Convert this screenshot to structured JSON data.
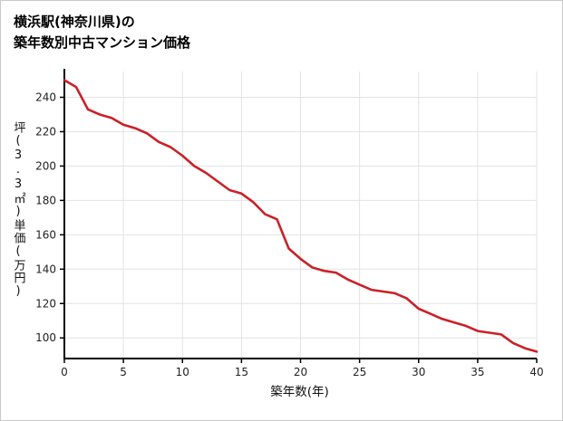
{
  "chart_data": {
    "type": "line",
    "title_lines": [
      "横浜駅(神奈川県)の",
      "築年数別中古マンション価格"
    ],
    "xlabel": "築年数(年)",
    "ylabel": "坪(3.3㎡)単価(万円)",
    "x": [
      0,
      1,
      2,
      3,
      4,
      5,
      6,
      7,
      8,
      9,
      10,
      11,
      12,
      13,
      14,
      15,
      16,
      17,
      18,
      19,
      20,
      21,
      22,
      23,
      24,
      25,
      26,
      27,
      28,
      29,
      30,
      31,
      32,
      33,
      34,
      35,
      36,
      37,
      38,
      39,
      40
    ],
    "y": [
      250,
      246,
      233,
      230,
      228,
      224,
      222,
      219,
      214,
      211,
      206,
      200,
      196,
      191,
      186,
      184,
      179,
      172,
      169,
      152,
      146,
      141,
      139,
      138,
      134,
      131,
      128,
      127,
      126,
      123,
      117,
      114,
      111,
      109,
      107,
      104,
      103,
      102,
      97,
      94,
      92
    ],
    "xlim": [
      0,
      40
    ],
    "ylim": [
      88,
      255
    ],
    "x_ticks": [
      0,
      5,
      10,
      15,
      20,
      25,
      30,
      35,
      40
    ],
    "y_ticks": [
      100,
      120,
      140,
      160,
      180,
      200,
      220,
      240
    ],
    "grid": true,
    "legend": "none",
    "line_color": "#cb2027",
    "grid_color": "#e2e2e2",
    "axis_color": "#000000"
  }
}
